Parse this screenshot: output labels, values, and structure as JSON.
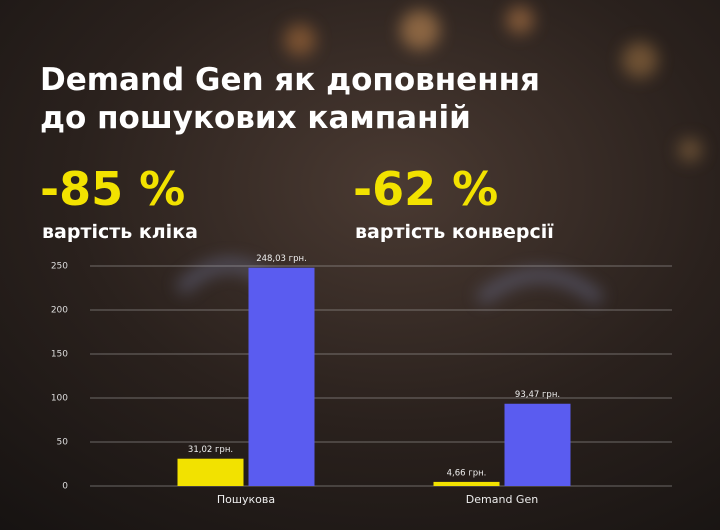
{
  "chart_data": {
    "type": "bar",
    "title_lines": [
      "Demand Gen як доповнення",
      "до пошукових кампаній"
    ],
    "stats": [
      {
        "value_text": "-85 %",
        "caption": "вартість кліка"
      },
      {
        "value_text": "-62 %",
        "caption": "вартість конверсії"
      }
    ],
    "categories": [
      "Пошукова",
      "Demand Gen"
    ],
    "series": [
      {
        "color": "#f2e200",
        "values": [
          31.02,
          4.66
        ],
        "value_labels": [
          "31,02 грн.",
          "4,66 грн."
        ]
      },
      {
        "color": "#5a5cf0",
        "values": [
          248.03,
          93.47
        ],
        "value_labels": [
          "248,03 грн.",
          "93,47 грн."
        ]
      }
    ],
    "ylim": [
      0,
      250
    ],
    "yticks": [
      0,
      50,
      100,
      150,
      200,
      250
    ],
    "grid": true
  }
}
